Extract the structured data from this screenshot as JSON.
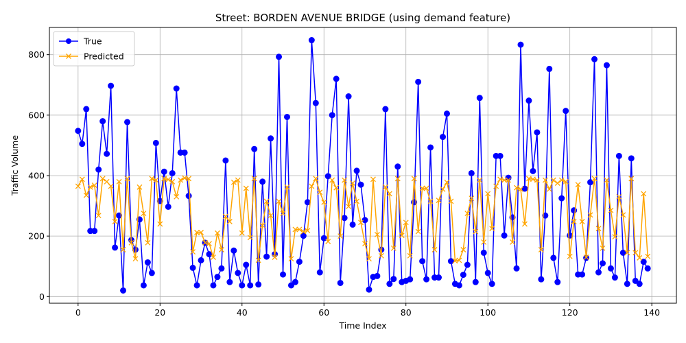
{
  "chart_data": {
    "type": "line",
    "title": "Street: BORDEN AVENUE BRIDGE (using demand feature)",
    "xlabel": "Time Index",
    "ylabel": "Traffic Volume",
    "xlim": [
      -7,
      146
    ],
    "ylim": [
      -22,
      890
    ],
    "xticks": [
      0,
      20,
      40,
      60,
      80,
      100,
      120,
      140
    ],
    "yticks": [
      0,
      200,
      400,
      600,
      800
    ],
    "grid": true,
    "legend_position": "top-left",
    "colors": {
      "true": "#0000ff",
      "predicted": "#ffa500",
      "grid": "#b0b0b0"
    },
    "series": [
      {
        "name": "True",
        "marker": "circle",
        "values": [
          548,
          505,
          620,
          217,
          217,
          420,
          580,
          472,
          697,
          162,
          268,
          20,
          577,
          187,
          155,
          255,
          37,
          113,
          78,
          508,
          316,
          413,
          297,
          408,
          688,
          476,
          476,
          333,
          95,
          37,
          120,
          178,
          140,
          37,
          65,
          93,
          450,
          48,
          152,
          78,
          37,
          105,
          37,
          488,
          40,
          380,
          132,
          523,
          140,
          793,
          73,
          594,
          37,
          48,
          115,
          201,
          312,
          848,
          640,
          80,
          193,
          398,
          600,
          720,
          45,
          260,
          662,
          238,
          416,
          370,
          253,
          23,
          65,
          68,
          155,
          620,
          42,
          58,
          430,
          48,
          52,
          57,
          312,
          710,
          117,
          57,
          493,
          63,
          63,
          528,
          605,
          117,
          42,
          37,
          72,
          105,
          408,
          48,
          657,
          145,
          78,
          42,
          465,
          465,
          202,
          393,
          262,
          93,
          833,
          357,
          648,
          415,
          543,
          57,
          268,
          753,
          128,
          48,
          325,
          614,
          202,
          285,
          73,
          73,
          128,
          378,
          785,
          80,
          110,
          765,
          93,
          63,
          465,
          145,
          42,
          457,
          52,
          42,
          115,
          93
        ]
      },
      {
        "name": "Predicted",
        "marker": "x",
        "values": [
          365,
          388,
          335,
          362,
          368,
          268,
          390,
          380,
          365,
          248,
          380,
          155,
          390,
          178,
          125,
          362,
          275,
          178,
          390,
          385,
          240,
          390,
          387,
          380,
          330,
          385,
          392,
          390,
          148,
          212,
          212,
          178,
          175,
          130,
          210,
          155,
          265,
          248,
          378,
          385,
          210,
          358,
          195,
          390,
          120,
          235,
          315,
          268,
          130,
          315,
          275,
          362,
          125,
          222,
          222,
          215,
          218,
          365,
          390,
          345,
          312,
          182,
          385,
          360,
          200,
          385,
          298,
          375,
          315,
          245,
          175,
          125,
          388,
          205,
          135,
          362,
          340,
          160,
          390,
          202,
          245,
          135,
          390,
          215,
          358,
          358,
          315,
          155,
          318,
          355,
          378,
          315,
          118,
          120,
          155,
          275,
          325,
          215,
          385,
          180,
          340,
          225,
          365,
          388,
          385,
          385,
          180,
          360,
          355,
          240,
          390,
          388,
          385,
          155,
          385,
          355,
          385,
          375,
          385,
          380,
          133,
          248,
          370,
          248,
          130,
          270,
          390,
          225,
          160,
          385,
          285,
          198,
          330,
          270,
          145,
          390,
          145,
          128,
          340,
          133
        ]
      }
    ],
    "legend": [
      "True",
      "Predicted"
    ]
  }
}
